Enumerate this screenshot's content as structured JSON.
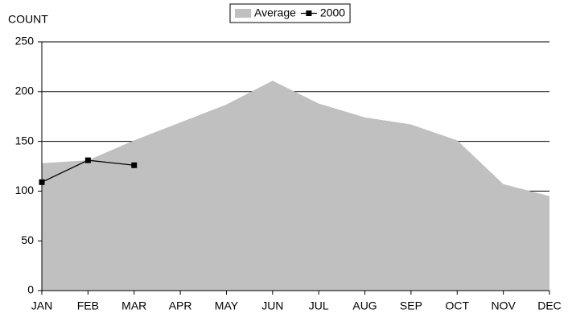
{
  "chart_data": {
    "type": "area",
    "y_label": "COUNT",
    "categories": [
      "JAN",
      "FEB",
      "MAR",
      "APR",
      "MAY",
      "JUN",
      "JUL",
      "AUG",
      "SEP",
      "OCT",
      "NOV",
      "DEC"
    ],
    "series": [
      {
        "name": "Average",
        "type": "area",
        "color": "#c0c0c0",
        "values": [
          128,
          131,
          151,
          169,
          187,
          211,
          188,
          174,
          167,
          151,
          107,
          95
        ]
      },
      {
        "name": "2000",
        "type": "line",
        "color": "#000000",
        "values": [
          109,
          131,
          126,
          null,
          null,
          null,
          null,
          null,
          null,
          null,
          null,
          null
        ]
      }
    ],
    "ylim": [
      0,
      250
    ],
    "yticks": [
      0,
      50,
      100,
      150,
      200,
      250
    ],
    "grid": true,
    "legend": "top"
  }
}
